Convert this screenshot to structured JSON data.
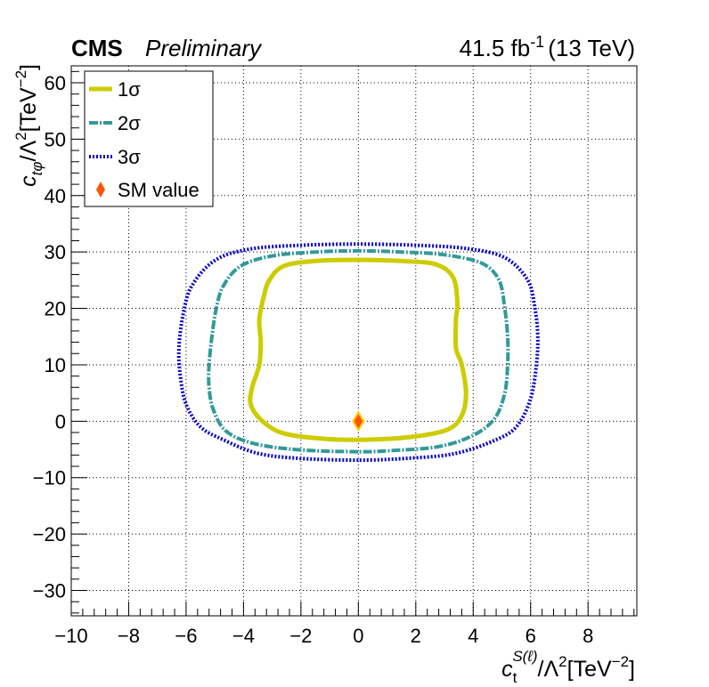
{
  "header": {
    "experiment": "CMS",
    "status": "Preliminary",
    "lumi": "41.5 fb",
    "lumi_exp": "-1",
    "energy": "(13 TeV)"
  },
  "chart_data": {
    "type": "line",
    "xlim": [
      -10,
      9.7
    ],
    "ylim": [
      -34.5,
      63
    ],
    "x_ticks": [
      -10,
      -8,
      -6,
      -4,
      -2,
      0,
      2,
      4,
      6,
      8
    ],
    "y_ticks": [
      -30,
      -20,
      -10,
      0,
      10,
      20,
      30,
      40,
      50,
      60
    ],
    "x_tick_labels": [
      "−10",
      "−8",
      "−6",
      "−4",
      "−2",
      "0",
      "2",
      "4",
      "6",
      "8"
    ],
    "y_tick_labels": [
      "−30",
      "−20",
      "−10",
      "0",
      "10",
      "20",
      "30",
      "40",
      "50",
      "60"
    ],
    "grid": true,
    "legend_placement": "top-left",
    "xlabel": {
      "base": "c",
      "sub": "t",
      "sup": "S(ℓ)",
      "rest": "/Λ",
      "rest_sup": "2",
      "unit": "[TeV",
      "unit_sup": "−2",
      "unit_close": "]"
    },
    "ylabel": {
      "base": "c",
      "sub": "tφ",
      "rest": "/Λ",
      "rest_sup": "2",
      "unit": "[TeV",
      "unit_sup": "−2",
      "unit_close": "]"
    },
    "series": [
      {
        "name": "1σ",
        "style": "solid",
        "color": "#cccc00",
        "points": [
          [
            0,
            -3.3
          ],
          [
            -1.5,
            -3.0
          ],
          [
            -2.7,
            -2.0
          ],
          [
            -3.4,
            0.3
          ],
          [
            -3.75,
            3.0
          ],
          [
            -3.7,
            6.0
          ],
          [
            -3.45,
            10.0
          ],
          [
            -3.4,
            14.0
          ],
          [
            -3.45,
            18.0
          ],
          [
            -3.3,
            22.0
          ],
          [
            -3.1,
            25.0
          ],
          [
            -2.6,
            27.5
          ],
          [
            -1.5,
            28.4
          ],
          [
            0,
            28.6
          ],
          [
            1.5,
            28.4
          ],
          [
            2.7,
            27.8
          ],
          [
            3.3,
            25.5
          ],
          [
            3.45,
            21.0
          ],
          [
            3.4,
            18.0
          ],
          [
            3.4,
            13.0
          ],
          [
            3.6,
            10.0
          ],
          [
            3.75,
            5.0
          ],
          [
            3.6,
            1.0
          ],
          [
            3.1,
            -1.5
          ],
          [
            1.8,
            -2.8
          ],
          [
            0,
            -3.3
          ]
        ]
      },
      {
        "name": "2σ",
        "style": "dash-dot",
        "color": "#339999",
        "points": [
          [
            0,
            -5.4
          ],
          [
            -2.0,
            -5.1
          ],
          [
            -3.6,
            -4.0
          ],
          [
            -4.6,
            -1.8
          ],
          [
            -5.05,
            2.0
          ],
          [
            -5.2,
            6.0
          ],
          [
            -5.2,
            10.0
          ],
          [
            -5.1,
            15.0
          ],
          [
            -4.95,
            20.0
          ],
          [
            -4.7,
            24.0
          ],
          [
            -4.1,
            27.5
          ],
          [
            -3.0,
            29.3
          ],
          [
            -1.5,
            30.0
          ],
          [
            0,
            30.2
          ],
          [
            1.5,
            30.0
          ],
          [
            3.0,
            29.5
          ],
          [
            4.3,
            28.0
          ],
          [
            4.9,
            25.0
          ],
          [
            5.1,
            20.0
          ],
          [
            5.2,
            15.0
          ],
          [
            5.2,
            10.0
          ],
          [
            5.1,
            5.0
          ],
          [
            4.75,
            0.5
          ],
          [
            4.0,
            -2.5
          ],
          [
            2.8,
            -4.5
          ],
          [
            1.2,
            -5.2
          ],
          [
            0,
            -5.4
          ]
        ]
      },
      {
        "name": "3σ",
        "style": "dotted",
        "color": "#0000cc",
        "points": [
          [
            0,
            -6.9
          ],
          [
            -2.0,
            -6.6
          ],
          [
            -3.5,
            -5.7
          ],
          [
            -4.7,
            -3.3
          ],
          [
            -5.5,
            -1.0
          ],
          [
            -6.0,
            3.0
          ],
          [
            -6.2,
            8.0
          ],
          [
            -6.25,
            13.0
          ],
          [
            -6.1,
            19.0
          ],
          [
            -5.8,
            24.0
          ],
          [
            -5.0,
            28.5
          ],
          [
            -3.8,
            30.5
          ],
          [
            -2.0,
            31.2
          ],
          [
            0,
            31.4
          ],
          [
            2.0,
            31.2
          ],
          [
            3.8,
            30.6
          ],
          [
            5.1,
            29.0
          ],
          [
            5.9,
            25.0
          ],
          [
            6.15,
            20.0
          ],
          [
            6.25,
            15.0
          ],
          [
            6.2,
            10.0
          ],
          [
            6.0,
            4.0
          ],
          [
            5.5,
            -1.0
          ],
          [
            4.7,
            -3.5
          ],
          [
            3.3,
            -5.8
          ],
          [
            1.6,
            -6.6
          ],
          [
            0,
            -6.9
          ]
        ]
      }
    ],
    "points": [
      {
        "name": "SM value",
        "x": 0,
        "y": 0,
        "color": "#ff5500",
        "edge": "#ffcc00",
        "marker": "diamond"
      }
    ]
  }
}
